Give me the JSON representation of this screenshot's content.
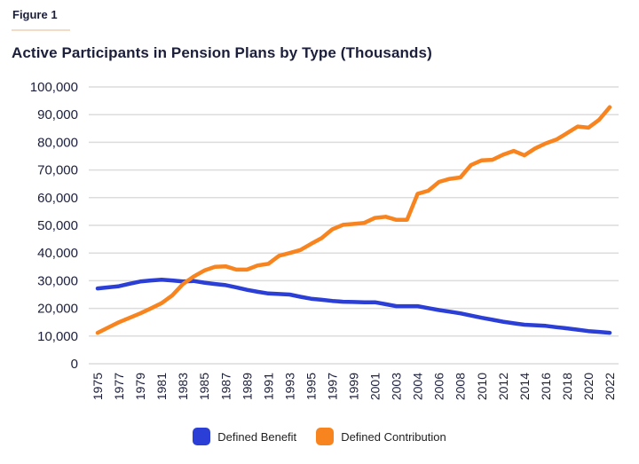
{
  "figure_label": "Figure 1",
  "chart_data": {
    "type": "line",
    "title": "Active Participants in Pension Plans by Type (Thousands)",
    "xlabel": "",
    "ylabel": "",
    "ylim": [
      0,
      100000
    ],
    "y_ticks": [
      "0",
      "10,000",
      "20,000",
      "30,000",
      "40,000",
      "50,000",
      "60,000",
      "70,000",
      "80,000",
      "90,000",
      "100,000"
    ],
    "y_tick_values": [
      0,
      10000,
      20000,
      30000,
      40000,
      50000,
      60000,
      70000,
      80000,
      90000,
      100000
    ],
    "x_tick_labels": [
      "1975",
      "1977",
      "1979",
      "1981",
      "1983",
      "1985",
      "1987",
      "1989",
      "1991",
      "1993",
      "1995",
      "1997",
      "1999",
      "2001",
      "2003",
      "2004",
      "2006",
      "2008",
      "2010",
      "2012",
      "2014",
      "2016",
      "2018",
      "2020",
      "2022"
    ],
    "grid": true,
    "legend_placement": "bottom",
    "series": [
      {
        "name": "Defined Benefit",
        "color": "#2b3fd6",
        "values": [
          27200,
          27600,
          28000,
          28900,
          29700,
          30100,
          30400,
          30100,
          29700,
          29900,
          29300,
          28800,
          28400,
          27600,
          26700,
          26000,
          25400,
          25200,
          25000,
          24200,
          23500,
          23100,
          22700,
          22400,
          22300,
          22200,
          22200,
          21500,
          20800,
          20800,
          20800,
          20100,
          19400,
          18800,
          18200,
          17400,
          16600,
          15900,
          15200,
          14600,
          14100,
          13900,
          13700,
          13200,
          12800,
          12300,
          11800,
          11500,
          11200
        ]
      },
      {
        "name": "Defined Contribution",
        "color": "#f7841e",
        "values": [
          11200,
          13100,
          15000,
          16600,
          18200,
          20000,
          21900,
          24700,
          28800,
          31500,
          33700,
          35000,
          35200,
          34000,
          34000,
          35500,
          36100,
          39000,
          40000,
          41100,
          43300,
          45400,
          48600,
          50200,
          50500,
          50900,
          52700,
          53100,
          52000,
          52000,
          61400,
          62500,
          65700,
          66800,
          67300,
          71800,
          73500,
          73700,
          75500,
          76900,
          75300,
          77800,
          79600,
          81000,
          83300,
          85700,
          85300,
          88100,
          92700
        ]
      }
    ]
  }
}
